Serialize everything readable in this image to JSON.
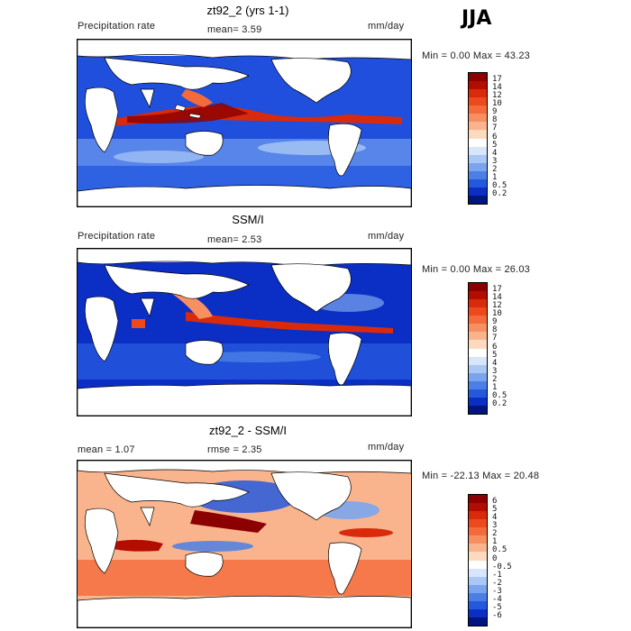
{
  "season": "JJA",
  "panels": [
    {
      "title": "zt92_2 (yrs 1-1)",
      "left_label": "Precipitation rate",
      "center_label": "mean=   3.59",
      "right_label": "mm/day",
      "minmax": "Min =   0.00 Max =  43.23"
    },
    {
      "title": "SSM/I",
      "left_label": "Precipitation rate",
      "center_label": "mean=   2.53",
      "right_label": "mm/day",
      "minmax": "Min =   0.00 Max =  26.03"
    },
    {
      "title": "zt92_2 - SSM/I",
      "left_label": "mean =   1.07",
      "center_label": "rmse =   2.35",
      "right_label": "mm/day",
      "minmax": "Min = -22.13 Max =  20.48"
    }
  ],
  "colorbars": {
    "precip": {
      "labels": [
        "17",
        "14",
        "12",
        "10",
        "9",
        "8",
        "7",
        "6",
        "5",
        "4",
        "3",
        "2",
        "1",
        "0.5",
        "0.2"
      ],
      "colors": [
        "#8b0000",
        "#b30d00",
        "#d92a0c",
        "#ec4a1d",
        "#f46a3a",
        "#f79061",
        "#f9b48d",
        "#fcd9bf",
        "#ffffff",
        "#d7e6fb",
        "#a9c8f5",
        "#7aa5ee",
        "#4b7fe6",
        "#2559dd",
        "#0b2fc5",
        "#00157e"
      ]
    },
    "diff": {
      "labels": [
        "6",
        "5",
        "4",
        "3",
        "2",
        "1",
        "0.5",
        "0",
        "-0.5",
        "-1",
        "-2",
        "-3",
        "-4",
        "-5",
        "-6"
      ],
      "colors": [
        "#8b0000",
        "#b30d00",
        "#d92a0c",
        "#ec4a1d",
        "#f46a3a",
        "#f79061",
        "#f9b48d",
        "#fcd9bf",
        "#ffffff",
        "#d7e6fb",
        "#a9c8f5",
        "#7aa5ee",
        "#4b7fe6",
        "#2559dd",
        "#0b2fc5",
        "#00157e"
      ]
    }
  },
  "map_fields": {
    "model": {
      "type": "blue-ocean-with-red-itcz"
    },
    "ssmi": {
      "type": "blue-ocean-with-red-itcz"
    },
    "diff": {
      "type": "red-positive-blue-negative"
    }
  }
}
